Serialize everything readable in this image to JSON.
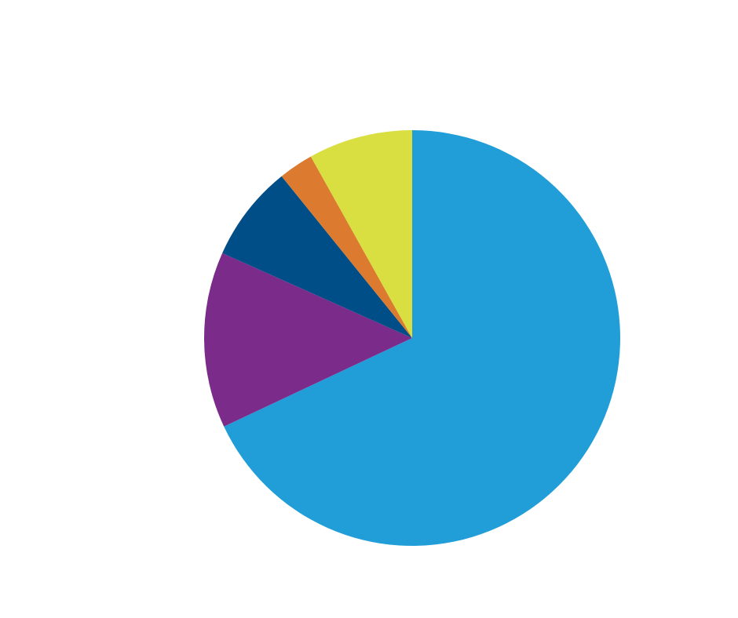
{
  "chart_data": {
    "type": "pie",
    "title": "",
    "start_angle_deg": 0,
    "direction": "clockwise",
    "legend": "none",
    "slices": [
      {
        "value": 68.0,
        "color": "#219ed8"
      },
      {
        "value": 13.7,
        "color": "#7b2b8a"
      },
      {
        "value": 7.5,
        "color": "#004e87"
      },
      {
        "value": 2.7,
        "color": "#dc7b2f"
      },
      {
        "value": 8.1,
        "color": "#d9df40"
      }
    ]
  }
}
